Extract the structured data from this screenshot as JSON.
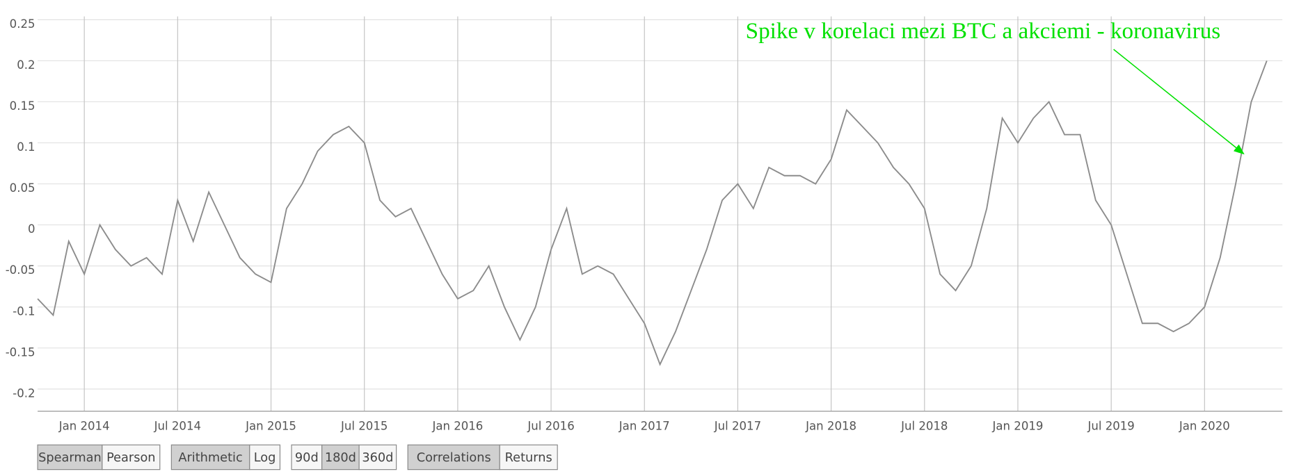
{
  "chart_data": {
    "type": "line",
    "annotation": "Spike v korelaci mezi BTC a akciemi - koronavirus",
    "annotation_color": "#00e000",
    "x": [
      "2013-10",
      "2013-11",
      "2013-12",
      "2014-01",
      "2014-02",
      "2014-03",
      "2014-04",
      "2014-05",
      "2014-06",
      "2014-07",
      "2014-08",
      "2014-09",
      "2014-10",
      "2014-11",
      "2014-12",
      "2015-01",
      "2015-02",
      "2015-03",
      "2015-04",
      "2015-05",
      "2015-06",
      "2015-07",
      "2015-08",
      "2015-09",
      "2015-10",
      "2015-11",
      "2015-12",
      "2016-01",
      "2016-02",
      "2016-03",
      "2016-04",
      "2016-05",
      "2016-06",
      "2016-07",
      "2016-08",
      "2016-09",
      "2016-10",
      "2016-11",
      "2016-12",
      "2017-01",
      "2017-02",
      "2017-03",
      "2017-04",
      "2017-05",
      "2017-06",
      "2017-07",
      "2017-08",
      "2017-09",
      "2017-10",
      "2017-11",
      "2017-12",
      "2018-01",
      "2018-02",
      "2018-03",
      "2018-04",
      "2018-05",
      "2018-06",
      "2018-07",
      "2018-08",
      "2018-09",
      "2018-10",
      "2018-11",
      "2018-12",
      "2019-01",
      "2019-02",
      "2019-03",
      "2019-04",
      "2019-05",
      "2019-06",
      "2019-07",
      "2019-08",
      "2019-09",
      "2019-10",
      "2019-11",
      "2019-12",
      "2020-01",
      "2020-02",
      "2020-03",
      "2020-04",
      "2020-05"
    ],
    "series": [
      {
        "color": "#8c8c8c",
        "values": [
          -0.09,
          -0.11,
          -0.02,
          -0.06,
          0.0,
          -0.03,
          -0.05,
          -0.04,
          -0.06,
          0.03,
          -0.02,
          0.04,
          0.0,
          -0.04,
          -0.06,
          -0.07,
          0.02,
          0.05,
          0.09,
          0.11,
          0.12,
          0.1,
          0.03,
          0.01,
          0.02,
          -0.02,
          -0.06,
          -0.09,
          -0.08,
          -0.05,
          -0.1,
          -0.14,
          -0.1,
          -0.03,
          0.02,
          -0.06,
          -0.05,
          -0.06,
          -0.09,
          -0.12,
          -0.17,
          -0.13,
          -0.08,
          -0.03,
          0.03,
          0.05,
          0.02,
          0.07,
          0.06,
          0.06,
          0.05,
          0.08,
          0.14,
          0.12,
          0.1,
          0.07,
          0.05,
          0.02,
          -0.06,
          -0.08,
          -0.05,
          0.02,
          0.13,
          0.1,
          0.13,
          0.15,
          0.11,
          0.11,
          0.03,
          0.0,
          -0.06,
          -0.12,
          -0.12,
          -0.13,
          -0.12,
          -0.1,
          -0.04,
          0.05,
          0.15,
          0.2
        ]
      }
    ],
    "xlim": [
      "2013-10",
      "2020-06"
    ],
    "xticks": [
      {
        "value": "2014-01",
        "label": "Jan 2014"
      },
      {
        "value": "2014-07",
        "label": "Jul 2014"
      },
      {
        "value": "2015-01",
        "label": "Jan 2015"
      },
      {
        "value": "2015-07",
        "label": "Jul 2015"
      },
      {
        "value": "2016-01",
        "label": "Jan 2016"
      },
      {
        "value": "2016-07",
        "label": "Jul 2016"
      },
      {
        "value": "2017-01",
        "label": "Jan 2017"
      },
      {
        "value": "2017-07",
        "label": "Jul 2017"
      },
      {
        "value": "2018-01",
        "label": "Jan 2018"
      },
      {
        "value": "2018-07",
        "label": "Jul 2018"
      },
      {
        "value": "2019-01",
        "label": "Jan 2019"
      },
      {
        "value": "2019-07",
        "label": "Jul 2019"
      },
      {
        "value": "2020-01",
        "label": "Jan 2020"
      }
    ],
    "ylim": [
      -0.227,
      0.254
    ],
    "yticks": [
      0.25,
      0.2,
      0.15,
      0.1,
      0.05,
      0,
      -0.05,
      -0.1,
      -0.15,
      -0.2
    ],
    "grid": true,
    "controls": [
      {
        "options": [
          "Spearman",
          "Pearson"
        ],
        "selected": 0
      },
      {
        "options": [
          "Arithmetic",
          "Log"
        ],
        "selected": 0
      },
      {
        "options": [
          "90d",
          "180d",
          "360d"
        ],
        "selected": 1
      },
      {
        "options": [
          "Correlations",
          "Returns"
        ],
        "selected": 0
      }
    ]
  }
}
